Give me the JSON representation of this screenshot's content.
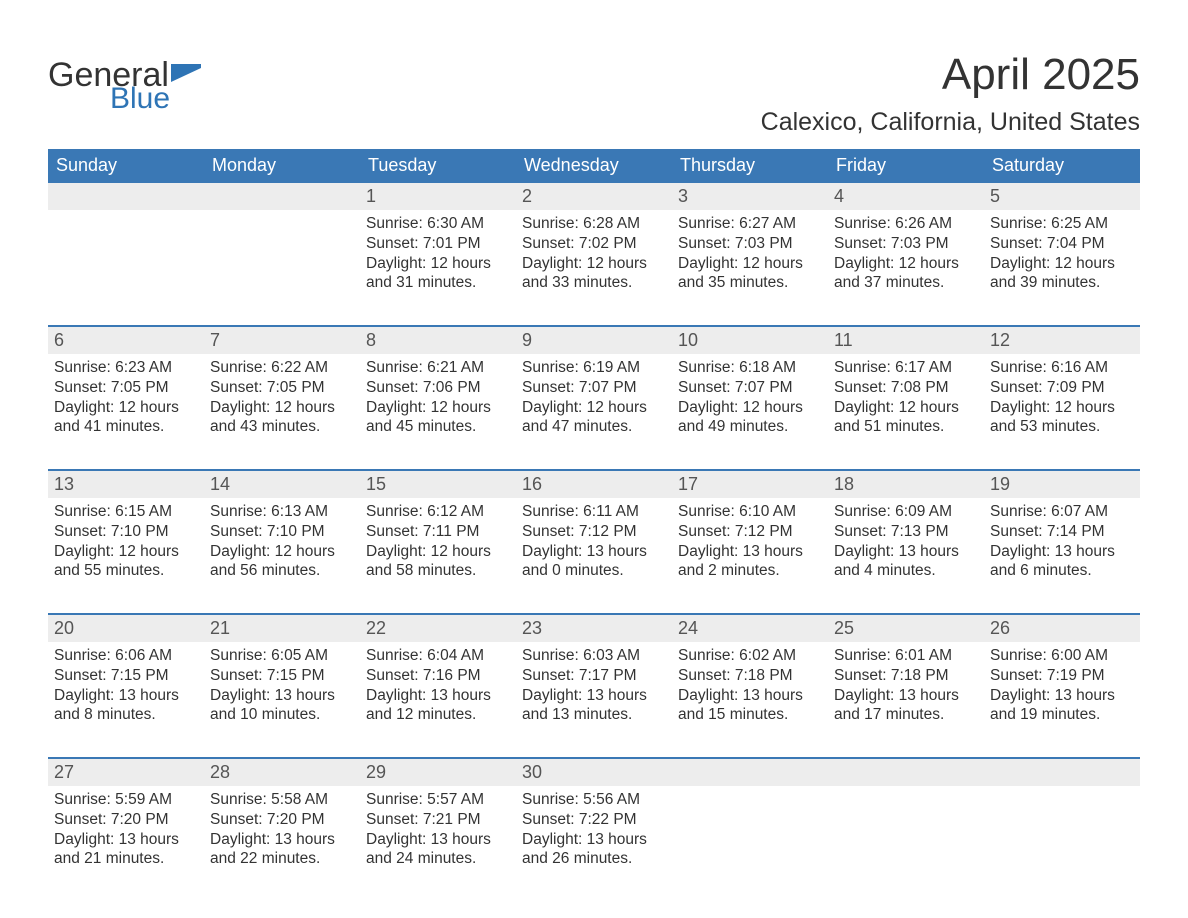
{
  "logo": {
    "text1": "General",
    "text2": "Blue",
    "flag_color": "#2e74b5"
  },
  "title": "April 2025",
  "subtitle": "Calexico, California, United States",
  "colors": {
    "header_bg": "#3a78b5",
    "header_text": "#ffffff",
    "daynum_bg": "#ededed",
    "rule": "#3a78b5",
    "text": "#333333"
  },
  "dow": [
    "Sunday",
    "Monday",
    "Tuesday",
    "Wednesday",
    "Thursday",
    "Friday",
    "Saturday"
  ],
  "weeks": [
    [
      null,
      null,
      {
        "n": "1",
        "sr": "Sunrise: 6:30 AM",
        "ss": "Sunset: 7:01 PM",
        "dl": "Daylight: 12 hours and 31 minutes."
      },
      {
        "n": "2",
        "sr": "Sunrise: 6:28 AM",
        "ss": "Sunset: 7:02 PM",
        "dl": "Daylight: 12 hours and 33 minutes."
      },
      {
        "n": "3",
        "sr": "Sunrise: 6:27 AM",
        "ss": "Sunset: 7:03 PM",
        "dl": "Daylight: 12 hours and 35 minutes."
      },
      {
        "n": "4",
        "sr": "Sunrise: 6:26 AM",
        "ss": "Sunset: 7:03 PM",
        "dl": "Daylight: 12 hours and 37 minutes."
      },
      {
        "n": "5",
        "sr": "Sunrise: 6:25 AM",
        "ss": "Sunset: 7:04 PM",
        "dl": "Daylight: 12 hours and 39 minutes."
      }
    ],
    [
      {
        "n": "6",
        "sr": "Sunrise: 6:23 AM",
        "ss": "Sunset: 7:05 PM",
        "dl": "Daylight: 12 hours and 41 minutes."
      },
      {
        "n": "7",
        "sr": "Sunrise: 6:22 AM",
        "ss": "Sunset: 7:05 PM",
        "dl": "Daylight: 12 hours and 43 minutes."
      },
      {
        "n": "8",
        "sr": "Sunrise: 6:21 AM",
        "ss": "Sunset: 7:06 PM",
        "dl": "Daylight: 12 hours and 45 minutes."
      },
      {
        "n": "9",
        "sr": "Sunrise: 6:19 AM",
        "ss": "Sunset: 7:07 PM",
        "dl": "Daylight: 12 hours and 47 minutes."
      },
      {
        "n": "10",
        "sr": "Sunrise: 6:18 AM",
        "ss": "Sunset: 7:07 PM",
        "dl": "Daylight: 12 hours and 49 minutes."
      },
      {
        "n": "11",
        "sr": "Sunrise: 6:17 AM",
        "ss": "Sunset: 7:08 PM",
        "dl": "Daylight: 12 hours and 51 minutes."
      },
      {
        "n": "12",
        "sr": "Sunrise: 6:16 AM",
        "ss": "Sunset: 7:09 PM",
        "dl": "Daylight: 12 hours and 53 minutes."
      }
    ],
    [
      {
        "n": "13",
        "sr": "Sunrise: 6:15 AM",
        "ss": "Sunset: 7:10 PM",
        "dl": "Daylight: 12 hours and 55 minutes."
      },
      {
        "n": "14",
        "sr": "Sunrise: 6:13 AM",
        "ss": "Sunset: 7:10 PM",
        "dl": "Daylight: 12 hours and 56 minutes."
      },
      {
        "n": "15",
        "sr": "Sunrise: 6:12 AM",
        "ss": "Sunset: 7:11 PM",
        "dl": "Daylight: 12 hours and 58 minutes."
      },
      {
        "n": "16",
        "sr": "Sunrise: 6:11 AM",
        "ss": "Sunset: 7:12 PM",
        "dl": "Daylight: 13 hours and 0 minutes."
      },
      {
        "n": "17",
        "sr": "Sunrise: 6:10 AM",
        "ss": "Sunset: 7:12 PM",
        "dl": "Daylight: 13 hours and 2 minutes."
      },
      {
        "n": "18",
        "sr": "Sunrise: 6:09 AM",
        "ss": "Sunset: 7:13 PM",
        "dl": "Daylight: 13 hours and 4 minutes."
      },
      {
        "n": "19",
        "sr": "Sunrise: 6:07 AM",
        "ss": "Sunset: 7:14 PM",
        "dl": "Daylight: 13 hours and 6 minutes."
      }
    ],
    [
      {
        "n": "20",
        "sr": "Sunrise: 6:06 AM",
        "ss": "Sunset: 7:15 PM",
        "dl": "Daylight: 13 hours and 8 minutes."
      },
      {
        "n": "21",
        "sr": "Sunrise: 6:05 AM",
        "ss": "Sunset: 7:15 PM",
        "dl": "Daylight: 13 hours and 10 minutes."
      },
      {
        "n": "22",
        "sr": "Sunrise: 6:04 AM",
        "ss": "Sunset: 7:16 PM",
        "dl": "Daylight: 13 hours and 12 minutes."
      },
      {
        "n": "23",
        "sr": "Sunrise: 6:03 AM",
        "ss": "Sunset: 7:17 PM",
        "dl": "Daylight: 13 hours and 13 minutes."
      },
      {
        "n": "24",
        "sr": "Sunrise: 6:02 AM",
        "ss": "Sunset: 7:18 PM",
        "dl": "Daylight: 13 hours and 15 minutes."
      },
      {
        "n": "25",
        "sr": "Sunrise: 6:01 AM",
        "ss": "Sunset: 7:18 PM",
        "dl": "Daylight: 13 hours and 17 minutes."
      },
      {
        "n": "26",
        "sr": "Sunrise: 6:00 AM",
        "ss": "Sunset: 7:19 PM",
        "dl": "Daylight: 13 hours and 19 minutes."
      }
    ],
    [
      {
        "n": "27",
        "sr": "Sunrise: 5:59 AM",
        "ss": "Sunset: 7:20 PM",
        "dl": "Daylight: 13 hours and 21 minutes."
      },
      {
        "n": "28",
        "sr": "Sunrise: 5:58 AM",
        "ss": "Sunset: 7:20 PM",
        "dl": "Daylight: 13 hours and 22 minutes."
      },
      {
        "n": "29",
        "sr": "Sunrise: 5:57 AM",
        "ss": "Sunset: 7:21 PM",
        "dl": "Daylight: 13 hours and 24 minutes."
      },
      {
        "n": "30",
        "sr": "Sunrise: 5:56 AM",
        "ss": "Sunset: 7:22 PM",
        "dl": "Daylight: 13 hours and 26 minutes."
      },
      null,
      null,
      null
    ]
  ]
}
